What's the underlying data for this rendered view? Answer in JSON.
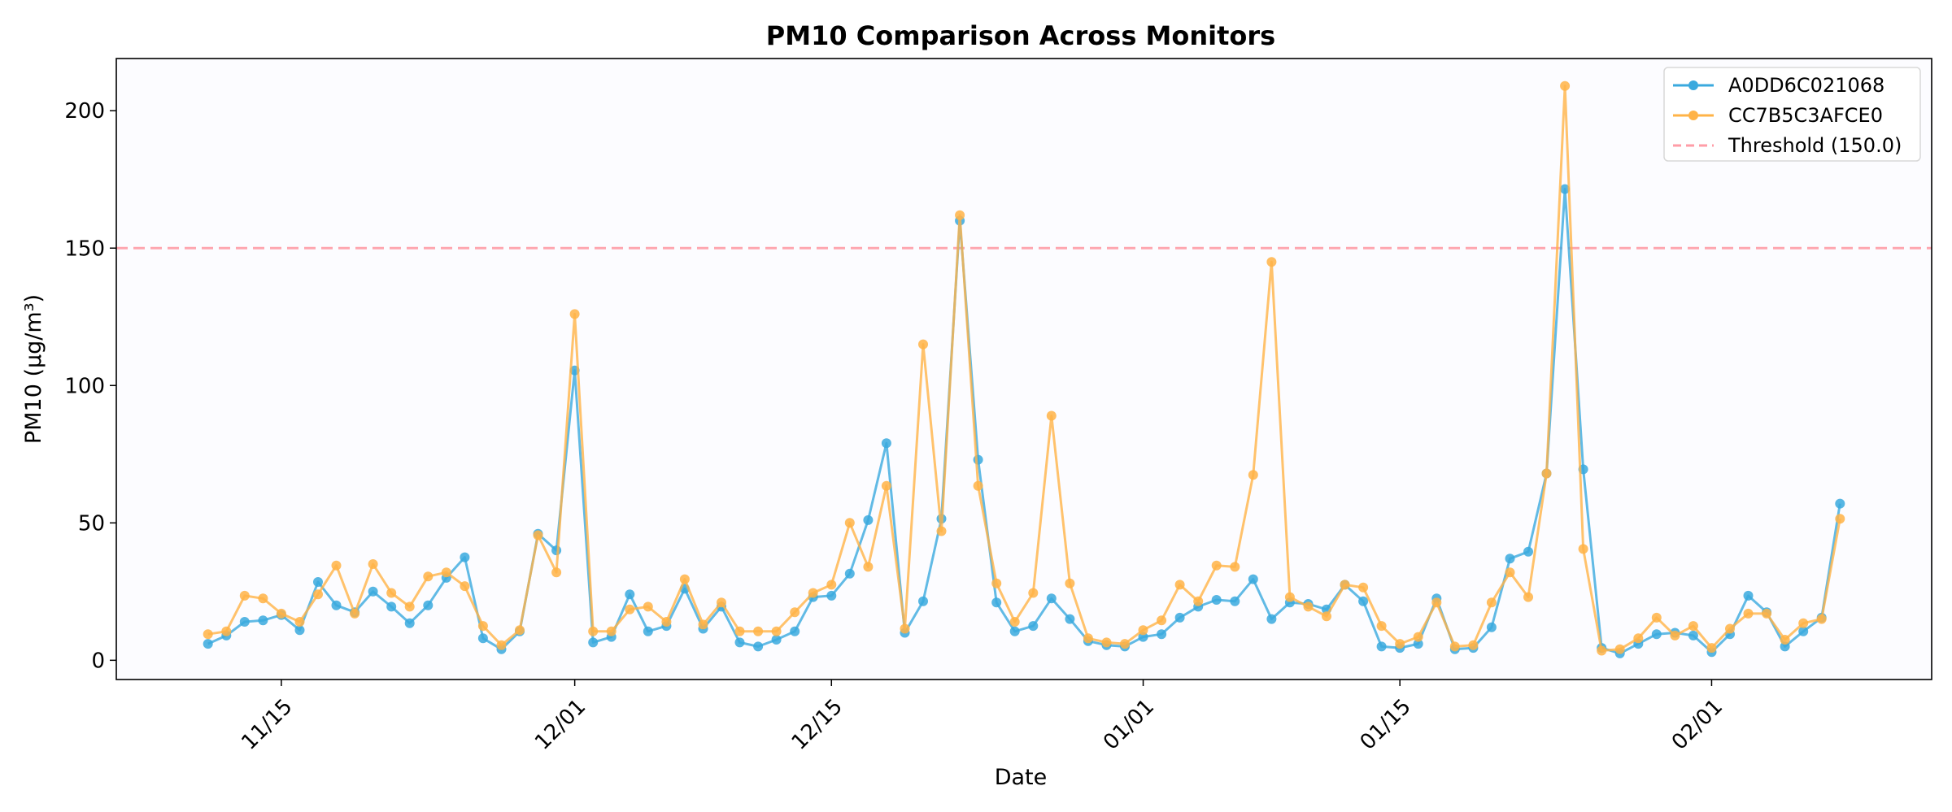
{
  "chart_data": {
    "type": "line",
    "title": "PM10 Comparison Across Monitors",
    "xlabel": "Date",
    "ylabel": "PM10 (µg/m³)",
    "x_tick_labels": [
      {
        "label": "11/15",
        "date": "2023-11-15"
      },
      {
        "label": "12/01",
        "date": "2023-12-01"
      },
      {
        "label": "12/15",
        "date": "2023-12-15"
      },
      {
        "label": "01/01",
        "date": "2024-01-01"
      },
      {
        "label": "01/15",
        "date": "2024-01-15"
      },
      {
        "label": "02/01",
        "date": "2024-02-01"
      }
    ],
    "xlim": [
      "2023-11-06",
      "2024-02-13"
    ],
    "ylim": [
      -7,
      219
    ],
    "y_ticks": [
      0,
      50,
      100,
      150,
      200
    ],
    "grid": false,
    "legend_position": "top-right",
    "threshold": {
      "name": "Threshold (150.0)",
      "value": 150.0,
      "color": "#ff9da7"
    },
    "x": [
      "2023-11-11",
      "2023-11-12",
      "2023-11-13",
      "2023-11-14",
      "2023-11-15",
      "2023-11-16",
      "2023-11-17",
      "2023-11-18",
      "2023-11-19",
      "2023-11-20",
      "2023-11-21",
      "2023-11-22",
      "2023-11-23",
      "2023-11-24",
      "2023-11-25",
      "2023-11-26",
      "2023-11-27",
      "2023-11-28",
      "2023-11-29",
      "2023-11-30",
      "2023-12-01",
      "2023-12-02",
      "2023-12-03",
      "2023-12-04",
      "2023-12-05",
      "2023-12-06",
      "2023-12-07",
      "2023-12-08",
      "2023-12-09",
      "2023-12-10",
      "2023-12-11",
      "2023-12-12",
      "2023-12-13",
      "2023-12-14",
      "2023-12-15",
      "2023-12-16",
      "2023-12-17",
      "2023-12-18",
      "2023-12-19",
      "2023-12-20",
      "2023-12-21",
      "2023-12-22",
      "2023-12-23",
      "2023-12-24",
      "2023-12-25",
      "2023-12-26",
      "2023-12-27",
      "2023-12-28",
      "2023-12-29",
      "2023-12-30",
      "2023-12-31",
      "2024-01-01",
      "2024-01-02",
      "2024-01-03",
      "2024-01-04",
      "2024-01-05",
      "2024-01-06",
      "2024-01-07",
      "2024-01-08",
      "2024-01-09",
      "2024-01-10",
      "2024-01-11",
      "2024-01-12",
      "2024-01-13",
      "2024-01-14",
      "2024-01-15",
      "2024-01-16",
      "2024-01-17",
      "2024-01-18",
      "2024-01-19",
      "2024-01-20",
      "2024-01-21",
      "2024-01-22",
      "2024-01-23",
      "2024-01-24",
      "2024-01-25",
      "2024-01-26",
      "2024-01-27",
      "2024-01-28",
      "2024-01-29",
      "2024-01-30",
      "2024-01-31",
      "2024-02-01",
      "2024-02-02",
      "2024-02-03",
      "2024-02-04",
      "2024-02-05",
      "2024-02-06",
      "2024-02-07",
      "2024-02-08"
    ],
    "series": [
      {
        "name": "A0DD6C021068",
        "color": "#3aa9de",
        "values": [
          6,
          9,
          14,
          14.5,
          16.5,
          11,
          28.5,
          20,
          17.5,
          25,
          19.5,
          13.5,
          20,
          30,
          37.5,
          8,
          4,
          10.5,
          46,
          40,
          105.5,
          6.5,
          8.5,
          24,
          10.5,
          12.5,
          26,
          11.5,
          19.5,
          6.5,
          5,
          7.5,
          10.5,
          23,
          23.5,
          31.5,
          51,
          79,
          10,
          21.5,
          51.5,
          160,
          73,
          21,
          10.5,
          12.5,
          22.5,
          15,
          7,
          5.5,
          5,
          8.5,
          9.5,
          15.5,
          19.5,
          22,
          21.5,
          29.5,
          15,
          21,
          20.5,
          18.5,
          27.5,
          21.5,
          5,
          4.5,
          6,
          22.5,
          4,
          4.5,
          12,
          37,
          39.5,
          68,
          171.5,
          69.5,
          4.5,
          2.5,
          6,
          9.5,
          10,
          9,
          3,
          9.5,
          23.5,
          17.5,
          5,
          10.5,
          15.5,
          57
        ]
      },
      {
        "name": "CC7B5C3AFCE0",
        "color": "#ffb347",
        "values": [
          9.5,
          10.5,
          23.5,
          22.5,
          17,
          14,
          24,
          34.5,
          17,
          35,
          24.5,
          19.5,
          30.5,
          32,
          27,
          12.5,
          5.5,
          11,
          45.5,
          32,
          126,
          10.5,
          10.5,
          18.5,
          19.5,
          14,
          29.5,
          13,
          21,
          10.5,
          10.5,
          10.5,
          17.5,
          24.5,
          27.5,
          50,
          34,
          63.5,
          11.5,
          115,
          47,
          162,
          63.5,
          28,
          14,
          24.5,
          89,
          28,
          8,
          6.5,
          6,
          11,
          14.5,
          27.5,
          21.5,
          34.5,
          34,
          67.5,
          145,
          23,
          19.5,
          16,
          27.5,
          26.5,
          12.5,
          6,
          8.5,
          21,
          5,
          5.5,
          21,
          32,
          23,
          68,
          209,
          40.5,
          3.5,
          4,
          8,
          15.5,
          9,
          12.5,
          4.5,
          11.5,
          17,
          17,
          7.5,
          13.5,
          15,
          51.5
        ]
      }
    ]
  }
}
